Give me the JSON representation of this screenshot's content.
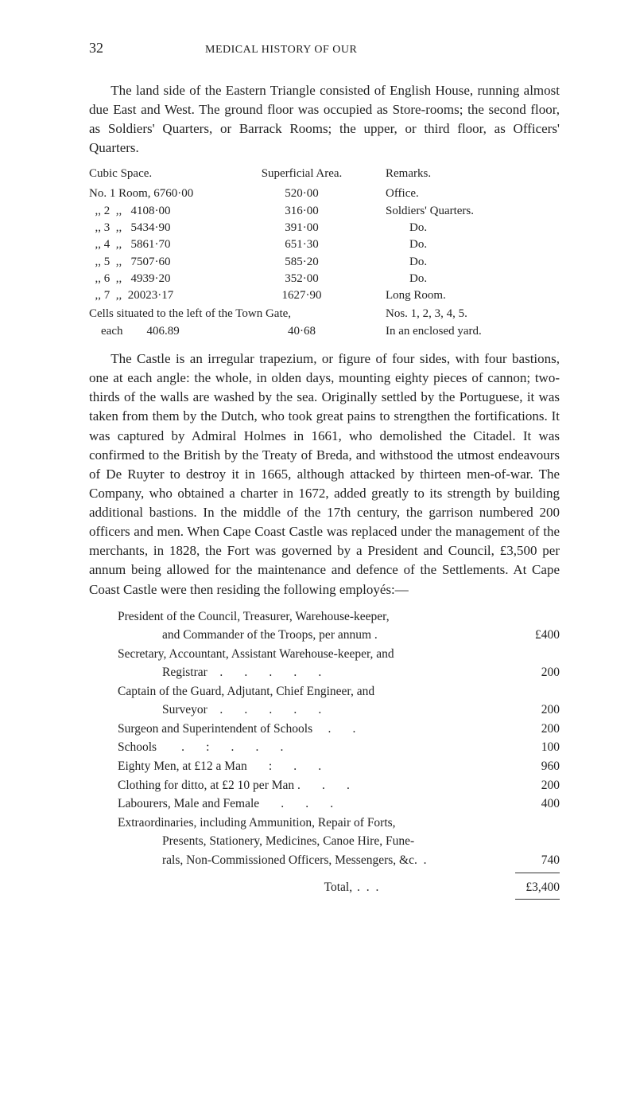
{
  "page_number": "32",
  "running_head": "MEDICAL HISTORY OF OUR",
  "para1": "The land side of the Eastern Triangle consisted of English House, running almost due East and West. The ground floor was occupied as Store-rooms; the second floor, as Soldiers' Quarters, or Barrack Rooms; the upper, or third floor, as Officers' Quarters.",
  "table1": {
    "headers": [
      "Cubic Space.",
      "Superficial Area.",
      "Remarks."
    ],
    "rows": [
      {
        "label": "No. 1 Room, 6760·00",
        "area": "520·00",
        "remark": "Office."
      },
      {
        "label": "  ,, 2  ,,   4108·00",
        "area": "316·00",
        "remark": "Soldiers' Quarters."
      },
      {
        "label": "  ,, 3  ,,   5434·90",
        "area": "391·00",
        "remark": "        Do."
      },
      {
        "label": "  ,, 4  ,,   5861·70",
        "area": "651·30",
        "remark": "        Do."
      },
      {
        "label": "  ,, 5  ,,   7507·60",
        "area": "585·20",
        "remark": "        Do."
      },
      {
        "label": "  ,, 6  ,,   4939·20",
        "area": "352·00",
        "remark": "        Do."
      },
      {
        "label": "  ,, 7  ,,  20023·17",
        "area": "1627·90",
        "remark": "Long Room."
      }
    ],
    "footer1": {
      "label": "Cells situated to the left of the Town Gate,",
      "remark": "Nos. 1, 2, 3, 4, 5."
    },
    "footer2": {
      "label": "    each        406.89",
      "area": "40·68",
      "remark": "In an enclosed yard."
    }
  },
  "para2": "The Castle is an irregular trapezium, or figure of four sides, with four bastions, one at each angle: the whole, in olden days, mounting eighty pieces of cannon; two-thirds of the walls are washed by the sea. Originally settled by the Portuguese, it was taken from them by the Dutch, who took great pains to strengthen the fortifications. It was captured by Admiral Holmes in 1661, who demolished the Citadel. It was confirmed to the British by the Treaty of Breda, and withstood the utmost endeavours of De Ruyter to destroy it in 1665, although attacked by thirteen men-of-war. The Company, who obtained a charter in 1672, added greatly to its strength by building additional bastions. In the middle of the 17th century, the garrison numbered 200 officers and men. When Cape Coast Castle was replaced under the management of the merchants, in 1828, the Fort was governed by a President and Council, £3,500 per annum being allowed for the maintenance and defence of the Settlements. At Cape Coast Castle were then residing the following employés:—",
  "employes": {
    "items": [
      {
        "lines": [
          "President of the Council, Treasurer, Warehouse-keeper,",
          "and Commander of the Troops, per annum ."
        ],
        "amount": "£400"
      },
      {
        "lines": [
          "Secretary, Accountant, Assistant Warehouse-keeper, and",
          "Registrar    .       .       .       .       ."
        ],
        "amount": "200"
      },
      {
        "lines": [
          "Captain of the Guard, Adjutant, Chief Engineer, and",
          "Surveyor    .       .       .       .       ."
        ],
        "amount": "200"
      },
      {
        "lines": [
          "Surgeon and Superintendent of Schools     .       ."
        ],
        "amount": "200"
      },
      {
        "lines": [
          "Schools        .       :       .       .       ."
        ],
        "amount": "100"
      },
      {
        "lines": [
          "Eighty Men, at £12 a Man       :       .       ."
        ],
        "amount": "960"
      },
      {
        "lines": [
          "Clothing for ditto, at £2 10 per Man .       .       ."
        ],
        "amount": "200"
      },
      {
        "lines": [
          "Labourers, Male and Female       .       .       ."
        ],
        "amount": "400"
      },
      {
        "lines": [
          "Extraordinaries, including Ammunition, Repair of Forts,",
          "Presents, Stationery, Medicines, Canoe Hire, Fune-",
          "rals, Non-Commissioned Officers, Messengers, &c.  ."
        ],
        "amount": "740"
      }
    ],
    "total_label": "Total,",
    "total_amount": "£3,400"
  },
  "colors": {
    "text": "#222222",
    "background": "#ffffff",
    "rule": "#333333"
  },
  "typography": {
    "body_family": "Times New Roman / serif",
    "body_size_pt": 12,
    "table_size_pt": 11,
    "running_head_size_pt": 10
  }
}
